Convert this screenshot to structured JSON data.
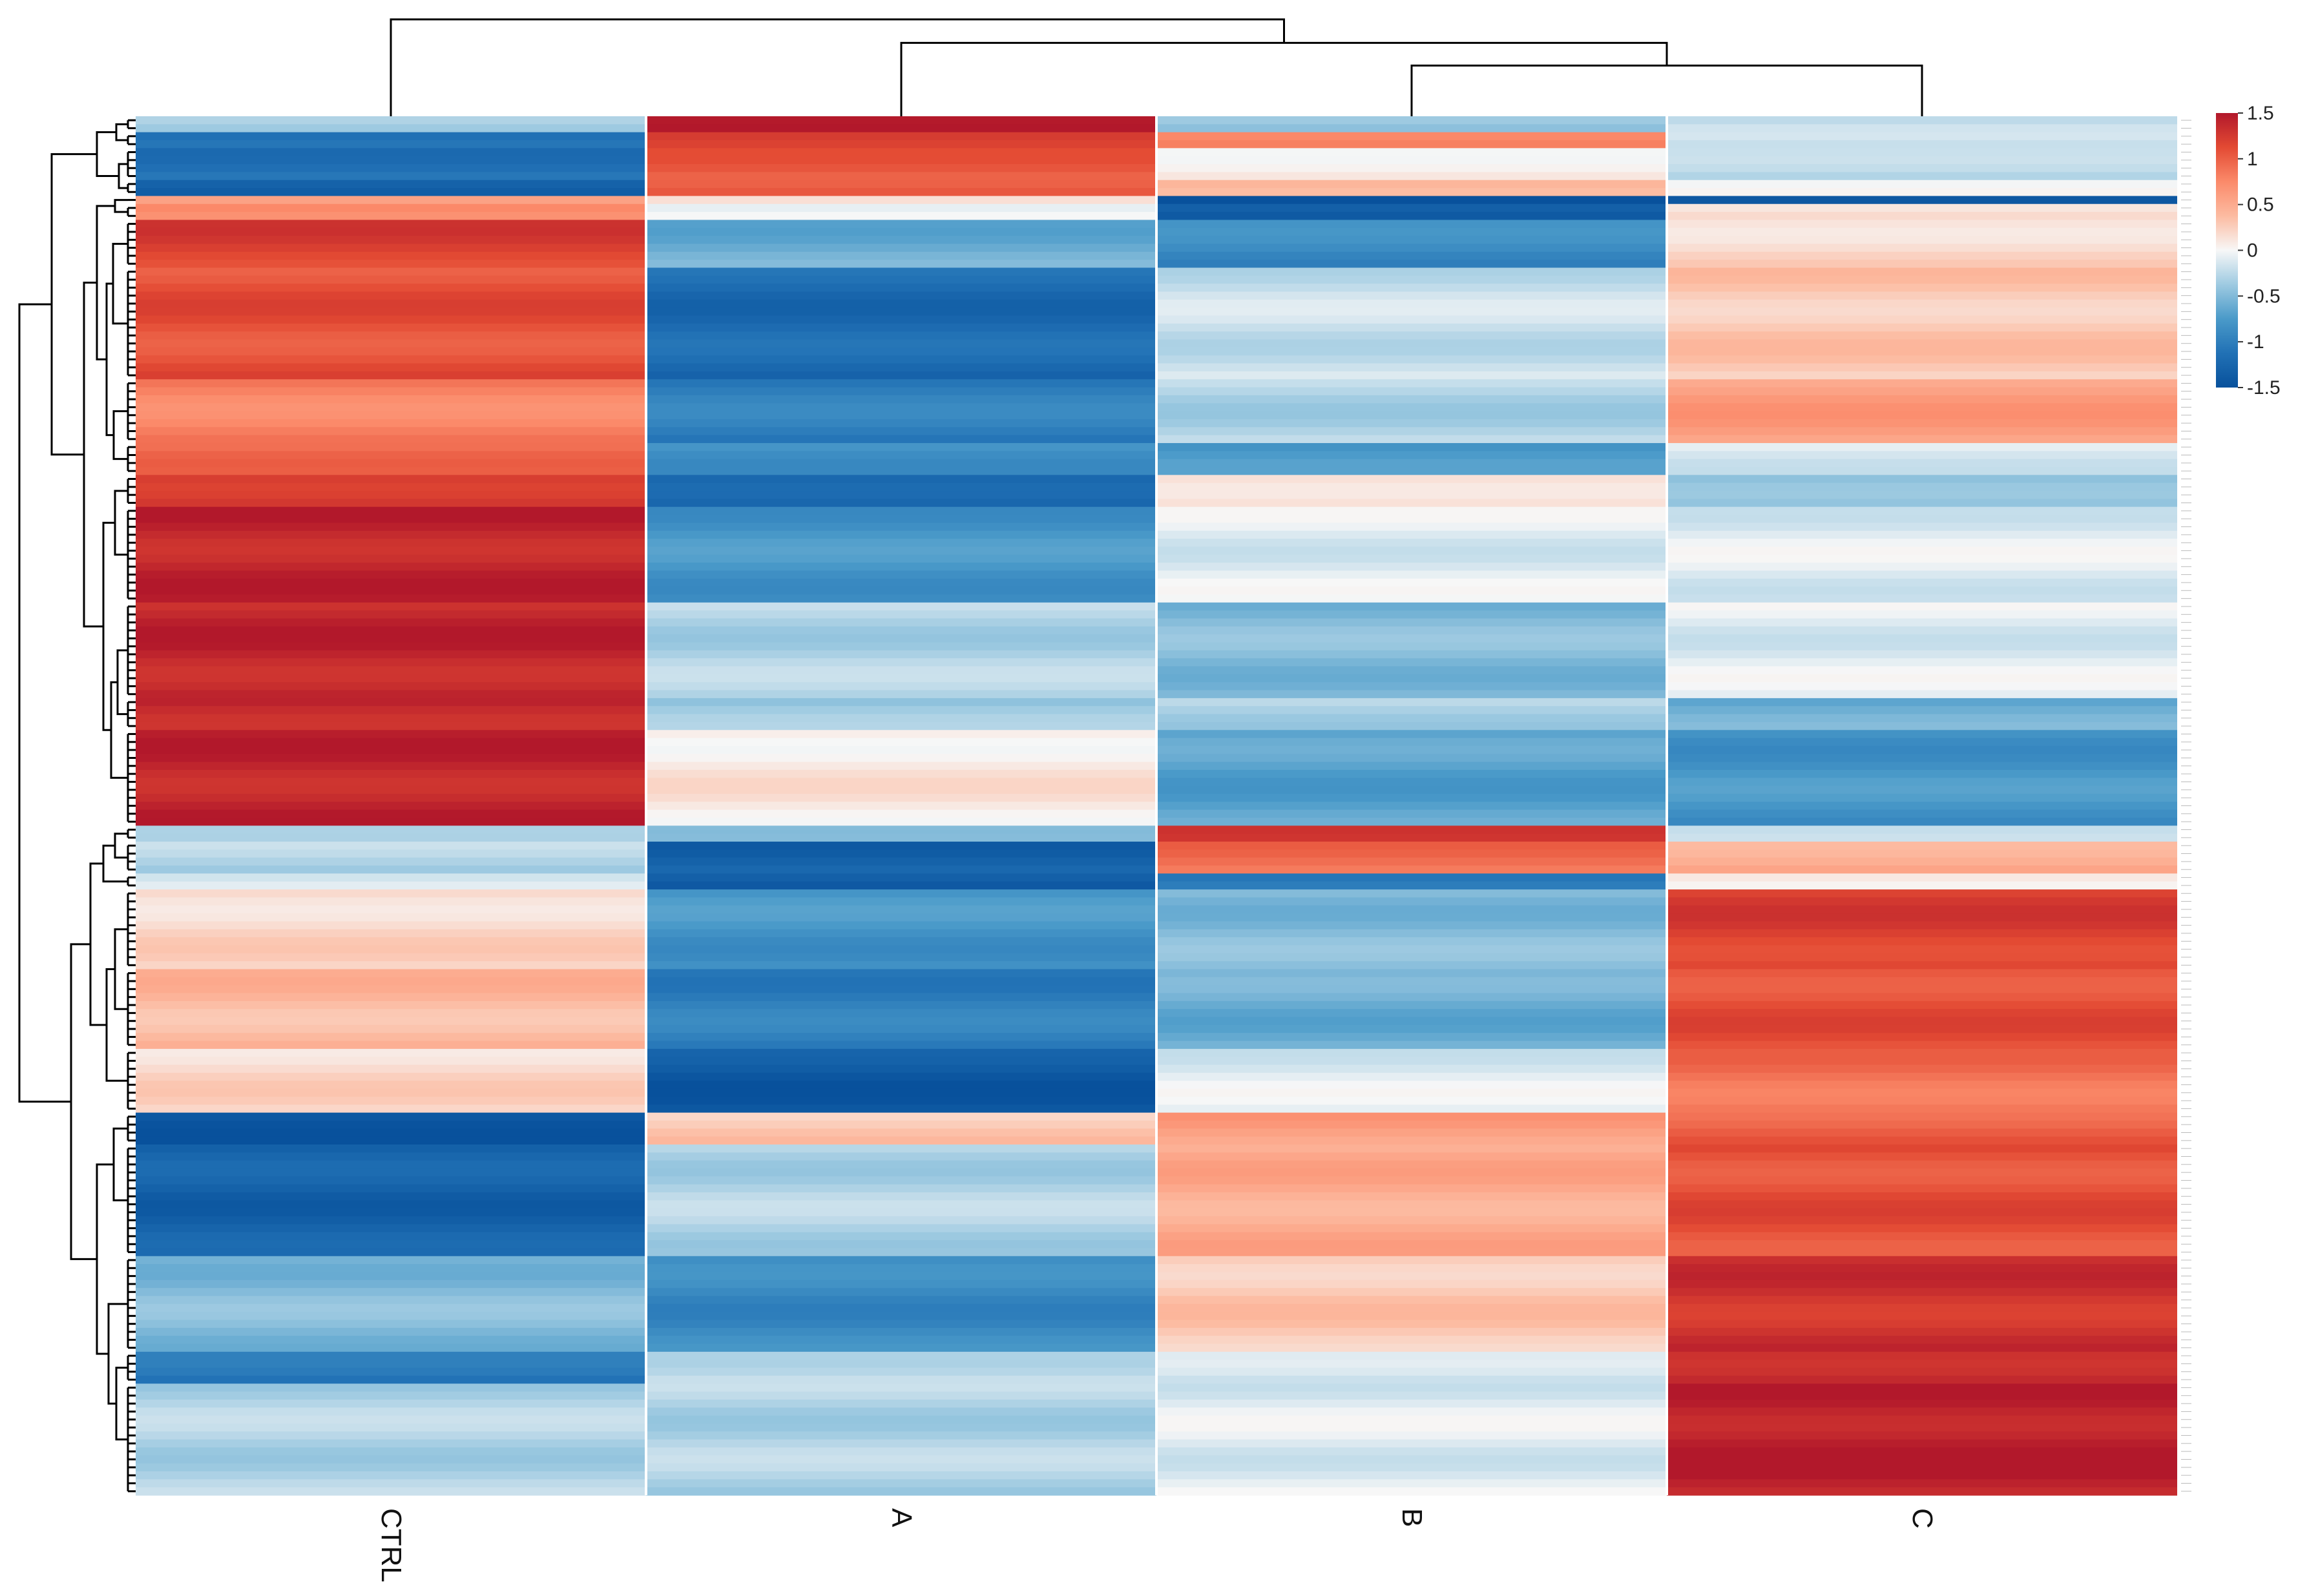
{
  "chart_data": {
    "type": "heatmap",
    "title": "",
    "xlabel": "",
    "ylabel": "",
    "columns": [
      "CTRL",
      "A",
      "B",
      "C"
    ],
    "column_dendrogram": [
      {
        "merge": [
          "B",
          "C"
        ],
        "height": 0.45
      },
      {
        "merge": [
          "A",
          "B+C"
        ],
        "height": 0.72
      },
      {
        "merge": [
          "CTRL",
          "A+B+C"
        ],
        "height": 1.0
      }
    ],
    "color_scale": {
      "min": -1.5,
      "max": 1.5,
      "colors": [
        "#08519c",
        "#2171b5",
        "#4a9ac9",
        "#9ecae1",
        "#f7f7f7",
        "#fcbba1",
        "#fb8a6a",
        "#e34a33",
        "#b2182b"
      ],
      "ticks": [
        "1.5",
        "1",
        "0.5",
        "0",
        "-0.5",
        "-1",
        "-1.5"
      ]
    },
    "row_blocks": [
      {
        "rows": 2,
        "values": [
          -0.3,
          1.5,
          -0.4,
          -0.2
        ]
      },
      {
        "rows": 2,
        "values": [
          -1.2,
          1.3,
          0.7,
          -0.1
        ]
      },
      {
        "rows": 4,
        "values": [
          -1.1,
          1.0,
          0.1,
          -0.3
        ]
      },
      {
        "rows": 2,
        "values": [
          -1.4,
          1.1,
          0.3,
          0.1
        ]
      },
      {
        "rows": 1,
        "values": [
          0.6,
          0.1,
          -1.5,
          -1.5
        ]
      },
      {
        "rows": 2,
        "values": [
          0.8,
          -0.1,
          -1.3,
          0.1
        ]
      },
      {
        "rows": 6,
        "values": [
          1.2,
          -0.6,
          -0.9,
          0.2
        ]
      },
      {
        "rows": 14,
        "values": [
          1.1,
          -1.2,
          -0.2,
          0.3
        ]
      },
      {
        "rows": 8,
        "values": [
          0.8,
          -1.0,
          -0.3,
          0.6
        ]
      },
      {
        "rows": 4,
        "values": [
          0.9,
          -0.8,
          -0.8,
          -0.1
        ]
      },
      {
        "rows": 4,
        "values": [
          1.3,
          -1.3,
          0.2,
          -0.5
        ]
      },
      {
        "rows": 12,
        "values": [
          1.4,
          -0.8,
          -0.1,
          -0.1
        ]
      },
      {
        "rows": 12,
        "values": [
          1.4,
          -0.3,
          -0.5,
          -0.1
        ]
      },
      {
        "rows": 4,
        "values": [
          1.4,
          -0.4,
          -0.3,
          -0.6
        ]
      },
      {
        "rows": 12,
        "values": [
          1.4,
          0.1,
          -0.7,
          -0.8
        ]
      },
      {
        "rows": 2,
        "values": [
          -0.2,
          -0.6,
          1.4,
          -0.3
        ]
      },
      {
        "rows": 4,
        "values": [
          -0.3,
          -1.3,
          0.9,
          0.5
        ]
      },
      {
        "rows": 2,
        "values": [
          -0.1,
          -1.4,
          -1.0,
          0.0
        ]
      },
      {
        "rows": 10,
        "values": [
          0.2,
          -0.8,
          -0.5,
          1.2
        ]
      },
      {
        "rows": 10,
        "values": [
          0.4,
          -1.0,
          -0.6,
          1.1
        ]
      },
      {
        "rows": 8,
        "values": [
          0.2,
          -1.4,
          -0.1,
          0.9
        ]
      },
      {
        "rows": 4,
        "values": [
          -1.5,
          0.3,
          0.6,
          1.0
        ]
      },
      {
        "rows": 14,
        "values": [
          -1.3,
          -0.3,
          0.5,
          1.1
        ]
      },
      {
        "rows": 12,
        "values": [
          -0.5,
          -0.9,
          0.3,
          1.3
        ]
      },
      {
        "rows": 4,
        "values": [
          -1.1,
          -0.2,
          -0.2,
          1.4
        ]
      },
      {
        "rows": 14,
        "values": [
          -0.3,
          -0.3,
          -0.1,
          1.45
        ]
      }
    ]
  }
}
